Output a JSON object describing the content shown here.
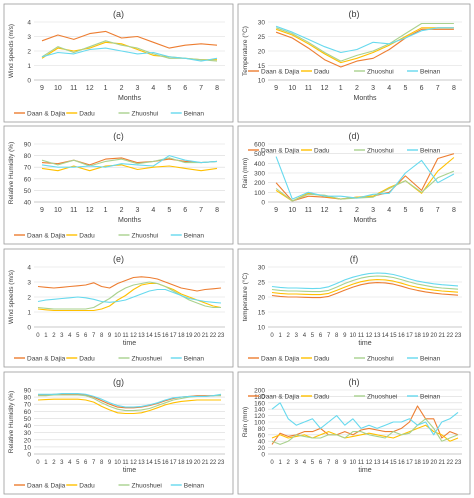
{
  "colors": {
    "Daan & Dajia": "#ED7D31",
    "Dadu": "#FFC000",
    "Zhuoshui": "#A9D18E",
    "Zhuoshuei": "#A9D18E",
    "Beinan": "#66D9EE"
  },
  "chart_data": [
    {
      "id": "a",
      "panel": "(a)",
      "type": "line",
      "xlabel": "Months",
      "ylabel": "Wind speeds (m/s)",
      "categories": [
        "9",
        "10",
        "11",
        "12",
        "1",
        "2",
        "3",
        "4",
        "5",
        "6",
        "7",
        "8"
      ],
      "ylim": [
        0,
        4
      ],
      "yticks": [
        0,
        1,
        2,
        3,
        4
      ],
      "legend": "bottom",
      "series": [
        {
          "name": "Daan & Dajia",
          "values": [
            2.7,
            3.1,
            2.8,
            3.2,
            3.35,
            2.9,
            3.0,
            2.6,
            2.2,
            2.4,
            2.5,
            2.4
          ]
        },
        {
          "name": "Dadu",
          "values": [
            1.5,
            2.2,
            2.0,
            2.2,
            2.6,
            2.5,
            2.1,
            1.7,
            1.6,
            1.5,
            1.4,
            1.4
          ]
        },
        {
          "name": "Zhuoshui",
          "values": [
            1.6,
            2.3,
            1.9,
            2.3,
            2.7,
            2.4,
            2.2,
            1.8,
            1.5,
            1.5,
            1.4,
            1.3
          ]
        },
        {
          "name": "Beinan",
          "values": [
            1.6,
            1.9,
            1.8,
            2.1,
            2.2,
            2.0,
            1.8,
            1.9,
            1.6,
            1.5,
            1.3,
            1.5
          ]
        }
      ]
    },
    {
      "id": "b",
      "panel": "(b)",
      "type": "line",
      "xlabel": "Months",
      "ylabel": "Temperature (°C)",
      "categories": [
        "9",
        "10",
        "11",
        "12",
        "1",
        "2",
        "3",
        "4",
        "5",
        "6",
        "7",
        "8"
      ],
      "ylim": [
        10,
        30
      ],
      "yticks": [
        10,
        15,
        20,
        25,
        30
      ],
      "legend": "inside-bottom",
      "series": [
        {
          "name": "Daan & Dajia",
          "values": [
            26.5,
            24.5,
            21,
            17,
            14.5,
            16.5,
            17.5,
            20.5,
            24.5,
            27.5,
            27.5,
            27.5
          ]
        },
        {
          "name": "Dadu",
          "values": [
            27.5,
            25.5,
            22.5,
            19,
            16,
            17.5,
            19.5,
            22,
            25,
            28,
            28,
            28
          ]
        },
        {
          "name": "Zhuoshui",
          "values": [
            28,
            26,
            23,
            19.5,
            16.5,
            18.5,
            20,
            22.5,
            26,
            29.5,
            29.5,
            29.5
          ]
        },
        {
          "name": "Beinan",
          "values": [
            28.5,
            26.5,
            24,
            21.5,
            19.5,
            20.5,
            23,
            22.5,
            24.5,
            27,
            28,
            28
          ]
        }
      ]
    },
    {
      "id": "c",
      "panel": "(c)",
      "type": "line",
      "xlabel": "Months",
      "ylabel": "Relative Humidity (%)",
      "categories": [
        "9",
        "10",
        "11",
        "12",
        "1",
        "2",
        "3",
        "4",
        "5",
        "6",
        "7",
        "8"
      ],
      "ylim": [
        40,
        90
      ],
      "yticks": [
        40,
        50,
        60,
        70,
        80,
        90
      ],
      "legend": "bottom",
      "series": [
        {
          "name": "Daan & Dajia",
          "values": [
            74,
            73,
            76,
            72,
            77,
            78,
            74,
            75,
            77,
            75,
            74,
            75
          ]
        },
        {
          "name": "Dadu",
          "values": [
            69,
            67,
            71,
            67,
            71,
            72,
            68,
            70,
            71,
            69,
            67,
            69
          ]
        },
        {
          "name": "Zhuoshui",
          "values": [
            76,
            72,
            76,
            71,
            75,
            77,
            73,
            75,
            78,
            74,
            74,
            75
          ]
        },
        {
          "name": "Beinan",
          "values": [
            72,
            70,
            70,
            71,
            70,
            73,
            72,
            71,
            80,
            76,
            74,
            75
          ]
        }
      ]
    },
    {
      "id": "d",
      "panel": "(d)",
      "type": "line",
      "xlabel": "Months",
      "ylabel": "Rain (mm)",
      "categories": [
        "9",
        "10",
        "11",
        "12",
        "1",
        "2",
        "3",
        "4",
        "5",
        "6",
        "7",
        "8"
      ],
      "ylim": [
        0,
        600
      ],
      "yticks": [
        0,
        100,
        200,
        300,
        400,
        500,
        600
      ],
      "legend": "top",
      "series": [
        {
          "name": "Daan & Dajia",
          "values": [
            200,
            10,
            60,
            50,
            30,
            50,
            60,
            100,
            270,
            120,
            450,
            500
          ]
        },
        {
          "name": "Dadu",
          "values": [
            120,
            10,
            90,
            60,
            30,
            50,
            60,
            150,
            220,
            90,
            320,
            460
          ]
        },
        {
          "name": "Zhuoshui",
          "values": [
            140,
            10,
            80,
            70,
            30,
            40,
            50,
            140,
            220,
            100,
            250,
            320
          ]
        },
        {
          "name": "Beinan",
          "values": [
            470,
            30,
            100,
            60,
            60,
            40,
            80,
            90,
            300,
            430,
            200,
            290
          ]
        }
      ]
    },
    {
      "id": "e",
      "panel": "(e)",
      "type": "line",
      "xlabel": "time",
      "ylabel": "Wind speeds (m/s)",
      "categories": [
        "0",
        "1",
        "2",
        "3",
        "4",
        "5",
        "6",
        "7",
        "8",
        "9",
        "10",
        "11",
        "12",
        "13",
        "14",
        "15",
        "16",
        "17",
        "18",
        "19",
        "20",
        "21",
        "22",
        "23"
      ],
      "ylim": [
        0,
        4
      ],
      "yticks": [
        0,
        1,
        2,
        3,
        4
      ],
      "legend": "bottom",
      "series": [
        {
          "name": "Daan & Dajia",
          "values": [
            2.7,
            2.65,
            2.6,
            2.65,
            2.7,
            2.75,
            2.8,
            2.95,
            2.7,
            2.6,
            2.9,
            3.1,
            3.3,
            3.35,
            3.3,
            3.2,
            3.0,
            2.8,
            2.6,
            2.5,
            2.4,
            2.5,
            2.55,
            2.6
          ]
        },
        {
          "name": "Dadu",
          "values": [
            1.2,
            1.15,
            1.1,
            1.1,
            1.1,
            1.1,
            1.1,
            1.1,
            1.2,
            1.4,
            1.8,
            2.1,
            2.5,
            2.8,
            2.9,
            2.9,
            2.7,
            2.5,
            2.2,
            2.0,
            1.8,
            1.6,
            1.4,
            1.3
          ]
        },
        {
          "name": "Zhuoshuei",
          "values": [
            1.3,
            1.25,
            1.2,
            1.2,
            1.2,
            1.2,
            1.2,
            1.3,
            1.6,
            1.9,
            2.3,
            2.6,
            2.8,
            2.9,
            3.0,
            2.9,
            2.7,
            2.4,
            2.1,
            1.8,
            1.6,
            1.4,
            1.3,
            1.3
          ]
        },
        {
          "name": "Beinan",
          "values": [
            1.7,
            1.8,
            1.85,
            1.9,
            1.95,
            2.0,
            1.95,
            1.85,
            1.7,
            1.65,
            1.7,
            1.8,
            2.0,
            2.2,
            2.4,
            2.5,
            2.5,
            2.3,
            2.1,
            1.9,
            1.8,
            1.7,
            1.65,
            1.6
          ]
        }
      ]
    },
    {
      "id": "f",
      "panel": "(f)",
      "type": "line",
      "xlabel": "time",
      "ylabel": "temperature (°C)",
      "categories": [
        "0",
        "1",
        "2",
        "3",
        "4",
        "5",
        "6",
        "7",
        "8",
        "9",
        "10",
        "11",
        "12",
        "13",
        "14",
        "15",
        "16",
        "17",
        "18",
        "19",
        "20",
        "21",
        "22",
        "23"
      ],
      "ylim": [
        10,
        30
      ],
      "yticks": [
        10,
        15,
        20,
        25,
        30
      ],
      "legend": "bottom",
      "series": [
        {
          "name": "Daan & Dajia",
          "values": [
            20.5,
            20.2,
            20,
            20,
            19.9,
            19.8,
            19.8,
            20.2,
            21.2,
            22.3,
            23.3,
            24.1,
            24.6,
            24.8,
            24.7,
            24.3,
            23.6,
            22.8,
            22.2,
            21.7,
            21.3,
            21,
            20.8,
            20.6
          ]
        },
        {
          "name": "Dadu",
          "values": [
            21.5,
            21.2,
            21,
            21,
            20.9,
            20.8,
            20.8,
            21.2,
            22.2,
            23.3,
            24.3,
            25.1,
            25.6,
            25.8,
            25.7,
            25.3,
            24.6,
            23.8,
            23.2,
            22.7,
            22.3,
            22,
            21.8,
            21.6
          ]
        },
        {
          "name": "Zhuoshui",
          "values": [
            22.5,
            22.2,
            22,
            22,
            21.9,
            21.8,
            21.8,
            22.2,
            23.3,
            24.5,
            25.5,
            26.3,
            26.8,
            27,
            26.9,
            26.5,
            25.8,
            25,
            24.3,
            23.8,
            23.3,
            23,
            22.8,
            22.6
          ]
        },
        {
          "name": "Beinan",
          "values": [
            23.5,
            23.2,
            23,
            23,
            22.9,
            22.8,
            22.9,
            23.4,
            24.5,
            25.7,
            26.6,
            27.3,
            27.8,
            28,
            27.9,
            27.5,
            26.8,
            26,
            25.3,
            24.8,
            24.4,
            24.1,
            23.9,
            23.7
          ]
        }
      ]
    },
    {
      "id": "g",
      "panel": "(g)",
      "type": "line",
      "xlabel": "time",
      "ylabel": "Relative Humidity (%)",
      "categories": [
        "0",
        "1",
        "2",
        "3",
        "4",
        "5",
        "6",
        "7",
        "8",
        "9",
        "10",
        "11",
        "12",
        "13",
        "14",
        "15",
        "16",
        "17",
        "18",
        "19",
        "20",
        "21",
        "22",
        "23"
      ],
      "ylim": [
        0,
        90
      ],
      "yticks": [
        0,
        10,
        20,
        30,
        40,
        50,
        60,
        70,
        80,
        90
      ],
      "legend": "bottom",
      "series": [
        {
          "name": "Daan & Dajia",
          "values": [
            83,
            83,
            84,
            84,
            84,
            84,
            83,
            80,
            75,
            70,
            66,
            65,
            65,
            66,
            68,
            71,
            75,
            78,
            80,
            81,
            82,
            82,
            82,
            83
          ]
        },
        {
          "name": "Dadu",
          "values": [
            76,
            76.5,
            77,
            77,
            77,
            77,
            76,
            73,
            67,
            62,
            58,
            57,
            57,
            58,
            61,
            65,
            69,
            72,
            74,
            75,
            76,
            76,
            76,
            76
          ]
        },
        {
          "name": "Zhuoshuei",
          "values": [
            82,
            82,
            83,
            83,
            83,
            83,
            82,
            78,
            72,
            67,
            63,
            61,
            61,
            62,
            64,
            68,
            72,
            76,
            78,
            80,
            81,
            81,
            82,
            82
          ]
        },
        {
          "name": "Beinan",
          "values": [
            84,
            84,
            84,
            85,
            85,
            85,
            84,
            81,
            77,
            72,
            68,
            66,
            66,
            67,
            69,
            72,
            76,
            79,
            80,
            81,
            81,
            81,
            82,
            84
          ]
        }
      ]
    },
    {
      "id": "h",
      "panel": "(h)",
      "type": "line",
      "xlabel": "time",
      "ylabel": "Rain (mm)",
      "categories": [
        "0",
        "1",
        "2",
        "3",
        "4",
        "5",
        "6",
        "7",
        "8",
        "9",
        "10",
        "11",
        "12",
        "13",
        "14",
        "15",
        "16",
        "17",
        "18",
        "19",
        "20",
        "21",
        "22",
        "23"
      ],
      "ylim": [
        0,
        200
      ],
      "yticks": [
        0,
        20,
        40,
        60,
        80,
        100,
        120,
        140,
        160,
        180,
        200
      ],
      "legend": "top",
      "series": [
        {
          "name": "Daan & Dajia",
          "values": [
            30,
            65,
            55,
            60,
            70,
            70,
            80,
            60,
            60,
            70,
            60,
            75,
            80,
            75,
            70,
            70,
            80,
            100,
            150,
            110,
            110,
            50,
            70,
            60
          ]
        },
        {
          "name": "Dadu",
          "values": [
            50,
            60,
            50,
            55,
            60,
            50,
            60,
            70,
            60,
            50,
            55,
            60,
            65,
            60,
            55,
            50,
            60,
            70,
            80,
            90,
            70,
            60,
            40,
            50
          ]
        },
        {
          "name": "Zhuoshuei",
          "values": [
            40,
            30,
            40,
            60,
            55,
            50,
            50,
            60,
            60,
            50,
            70,
            70,
            60,
            55,
            50,
            70,
            60,
            65,
            90,
            110,
            80,
            40,
            50,
            60
          ]
        },
        {
          "name": "Beinan",
          "values": [
            140,
            160,
            110,
            90,
            100,
            110,
            80,
            100,
            120,
            90,
            110,
            80,
            90,
            80,
            90,
            100,
            100,
            110,
            90,
            100,
            60,
            100,
            110,
            130
          ]
        }
      ]
    }
  ]
}
